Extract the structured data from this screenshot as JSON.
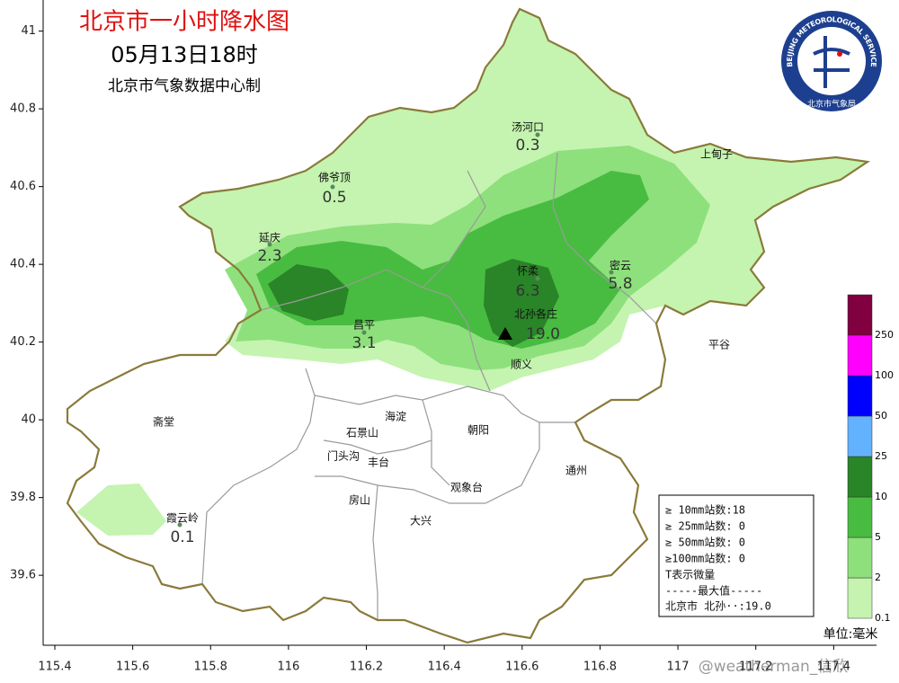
{
  "header": {
    "title": "北京市一小时降水图",
    "time": "05月13日18时",
    "source": "北京市气象数据中心制"
  },
  "logo": {
    "name_en": "BEIJING METEOROLOGICAL SERVICE",
    "name_cn": "北京市气象局"
  },
  "axes": {
    "xlim": [
      115.37,
      117.51
    ],
    "ylim": [
      39.42,
      41.08
    ],
    "xticks": [
      115.4,
      115.6,
      115.8,
      116,
      116.2,
      116.4,
      116.6,
      116.8,
      117,
      117.2,
      117.4
    ],
    "yticks": [
      39.6,
      39.8,
      40,
      40.2,
      40.4,
      40.6,
      40.8,
      41
    ]
  },
  "stations": [
    {
      "name": "汤河口",
      "value": 0.3
    },
    {
      "name": "佛爷顶",
      "value": 0.5
    },
    {
      "name": "延庆",
      "value": 2.3
    },
    {
      "name": "怀柔",
      "value": 6.3
    },
    {
      "name": "密云",
      "value": 5.8
    },
    {
      "name": "昌平",
      "value": 3.1
    },
    {
      "name": "北孙各庄",
      "value": 19,
      "value_label": "19.0"
    },
    {
      "name": "霞云岭",
      "value": 0.1
    }
  ],
  "places": [
    "上甸子",
    "平谷",
    "顺义",
    "斋堂",
    "海淀",
    "石景山",
    "朝阳",
    "门头沟",
    "丰台",
    "观象台",
    "房山",
    "通州",
    "大兴"
  ],
  "legend": {
    "levels": [
      0.1,
      2,
      5,
      10,
      25,
      50,
      100,
      250
    ],
    "colors": [
      "#c4f4b0",
      "#8ee07c",
      "#48bc40",
      "#2a8428",
      "#62b2ff",
      "#0000ff",
      "#ff00ff",
      "#800040"
    ],
    "unit": "单位:毫米"
  },
  "summary": {
    "lines": [
      "≥ 10mm站数:18",
      "≥ 25mm站数: 0",
      "≥ 50mm站数: 0",
      "≥100mm站数: 0",
      "T表示微量"
    ],
    "max_title": "-----最大值-----",
    "max_line": "北京市 北孙··:19.0"
  },
  "watermark": "@weatherman_信欣"
}
